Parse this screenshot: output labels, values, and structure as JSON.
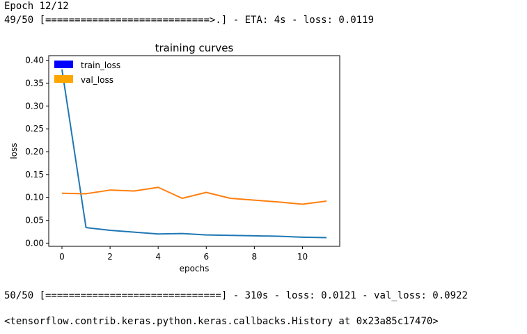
{
  "console": {
    "epoch_line": "Epoch 12/12",
    "progress_line_1": "49/50 [============================>.] - ETA: 4s - loss: 0.0119",
    "progress_line_2": "50/50 [==============================] - 310s - loss: 0.0121 - val_loss: 0.0922",
    "history_line": "<tensorflow.contrib.keras.python.keras.callbacks.History at 0x23a85c17470>"
  },
  "chart_data": {
    "type": "line",
    "title": "training curves",
    "xlabel": "epochs",
    "ylabel": "loss",
    "xlim": [
      -0.55,
      11.55
    ],
    "ylim": [
      -0.007,
      0.41
    ],
    "xticks": [
      0,
      2,
      4,
      6,
      8,
      10
    ],
    "yticks": [
      0.0,
      0.05,
      0.1,
      0.15,
      0.2,
      0.25,
      0.3,
      0.35,
      0.4
    ],
    "xtick_labels": [
      "0",
      "2",
      "4",
      "6",
      "8",
      "10"
    ],
    "ytick_labels": [
      "0.00",
      "0.05",
      "0.10",
      "0.15",
      "0.20",
      "0.25",
      "0.30",
      "0.35",
      "0.40"
    ],
    "grid": false,
    "legend_placement": "upper-left",
    "x": [
      0,
      1,
      2,
      3,
      4,
      5,
      6,
      7,
      8,
      9,
      10,
      11
    ],
    "series": [
      {
        "name": "train_loss",
        "legend_color": "#0000ff",
        "line_color": "#1f77b4",
        "values": [
          0.38,
          0.034,
          0.028,
          0.024,
          0.02,
          0.021,
          0.018,
          0.017,
          0.016,
          0.015,
          0.013,
          0.012
        ]
      },
      {
        "name": "val_loss",
        "legend_color": "#ffa500",
        "line_color": "#ff7f0e",
        "values": [
          0.109,
          0.108,
          0.116,
          0.114,
          0.122,
          0.098,
          0.111,
          0.098,
          0.094,
          0.09,
          0.085,
          0.092
        ]
      }
    ]
  }
}
